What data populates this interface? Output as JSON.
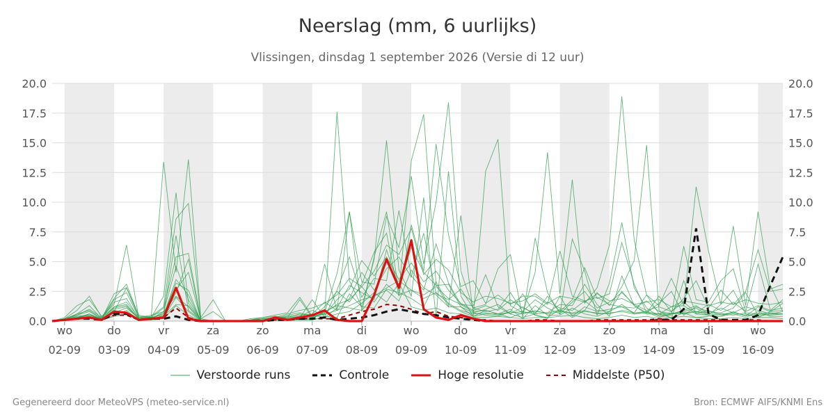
{
  "title": "Neerslag (mm, 6 uurlijks)",
  "subtitle": "Vlissingen, dinsdag  1 september 2026 (Versie di 12 uur)",
  "footer": {
    "left": "Gegenereerd door MeteoVPS (meteo-service.nl)",
    "right": "Bron: ECMWF AIFS/KNMI Ens"
  },
  "legend": [
    {
      "label": "Verstoorde runs",
      "color": "#33a853",
      "style": "thin"
    },
    {
      "label": "Controle",
      "color": "#111111",
      "style": "dashed"
    },
    {
      "label": "Hoge resolutie",
      "color": "#dd1111",
      "style": "solid"
    },
    {
      "label": "Middelste (P50)",
      "color": "#990000",
      "style": "dashed-thin"
    }
  ],
  "chart_data": {
    "type": "line",
    "title": "Neerslag (mm, 6 uurlijks)",
    "ylim": [
      0,
      20
    ],
    "yticks": [
      "0.0",
      "2.5",
      "5.0",
      "7.5",
      "10.0",
      "12.5",
      "15.0",
      "17.5",
      "20.0"
    ],
    "xlim": [
      0,
      59
    ],
    "x_ticks": [
      {
        "day": "wo",
        "date": "02-09"
      },
      {
        "day": "do",
        "date": "03-09"
      },
      {
        "day": "vr",
        "date": "04-09"
      },
      {
        "day": "za",
        "date": "05-09"
      },
      {
        "day": "zo",
        "date": "06-09"
      },
      {
        "day": "ma",
        "date": "07-09"
      },
      {
        "day": "di",
        "date": "08-09"
      },
      {
        "day": "wo",
        "date": "09-09"
      },
      {
        "day": "do",
        "date": "10-09"
      },
      {
        "day": "vr",
        "date": "11-09"
      },
      {
        "day": "za",
        "date": "12-09"
      },
      {
        "day": "zo",
        "date": "13-09"
      },
      {
        "day": "ma",
        "date": "14-09"
      },
      {
        "day": "di",
        "date": "15-09"
      },
      {
        "day": "wo",
        "date": "16-09"
      }
    ],
    "series": [
      {
        "name": "Hoge resolutie",
        "color": "#dd1111",
        "values": [
          0,
          0.1,
          0.2,
          0.3,
          0.1,
          0.8,
          0.7,
          0.1,
          0.2,
          0.3,
          2.8,
          0.2,
          0,
          0,
          0,
          0,
          0,
          0,
          0.3,
          0.1,
          0.3,
          0.5,
          0.9,
          0.1,
          0,
          0,
          2.2,
          5.2,
          2.8,
          6.8,
          1,
          0.3,
          0.1,
          0.5,
          0.2,
          0,
          0,
          0,
          0,
          0,
          0,
          0,
          0,
          0,
          0,
          0,
          0,
          0,
          0,
          0,
          0,
          0,
          0,
          0,
          0,
          0,
          0,
          0,
          0,
          0
        ]
      },
      {
        "name": "Controle",
        "color": "#111111",
        "values": [
          0,
          0.1,
          0.2,
          0.2,
          0.1,
          0.6,
          0.6,
          0.1,
          0.2,
          0.2,
          0.4,
          0.1,
          0,
          0,
          0,
          0,
          0,
          0,
          0.1,
          0.1,
          0.2,
          0.2,
          0.3,
          0.1,
          0.2,
          0.3,
          0.5,
          0.8,
          1,
          0.8,
          0.6,
          0.5,
          0.3,
          0.2,
          0.1,
          0,
          0,
          0,
          0,
          0,
          0,
          0,
          0,
          0,
          0,
          0,
          0,
          0,
          0,
          0.1,
          0.1,
          1,
          7.8,
          0.6,
          0.1,
          0.1,
          0.1,
          0.5,
          3,
          5.4
        ]
      },
      {
        "name": "Middelste (P50)",
        "color": "#990000",
        "values": [
          0,
          0.1,
          0.2,
          0.3,
          0.1,
          0.5,
          0.5,
          0.1,
          0.2,
          0.3,
          1.1,
          0.3,
          0,
          0,
          0,
          0,
          0,
          0,
          0.1,
          0.1,
          0.2,
          0.2,
          0.2,
          0.2,
          0.5,
          0.8,
          1,
          1.4,
          1.3,
          1,
          0.6,
          0.8,
          0.4,
          0.3,
          0.1,
          0.1,
          0,
          0,
          0,
          0.1,
          0.1,
          0,
          0,
          0,
          0.1,
          0.1,
          0.1,
          0.1,
          0.1,
          0.2,
          0.1,
          0.1,
          0.1,
          0.1,
          0.1,
          0,
          0.1,
          0.1,
          0,
          0
        ]
      },
      {
        "values": [
          0,
          0.2,
          0.9,
          2.1,
          0.3,
          1.9,
          3.1,
          0.4,
          0.3,
          2.1,
          10.8,
          1.5,
          0.1,
          0,
          0,
          0,
          0.1,
          0.3,
          0.4,
          0.3,
          1.8,
          0.3,
          0.6,
          17.6,
          3.4,
          1.2,
          5.2,
          15.2,
          4.3,
          2.1,
          10.4,
          0.3,
          12.6,
          2.1,
          0.4,
          12.6,
          15.3,
          1.3,
          0.7,
          4.1,
          14.2,
          2.3,
          11.9,
          1.5,
          2.8,
          6.4,
          18.9,
          6.8,
          2.2,
          1.3,
          3.6,
          1.3,
          11.3,
          5.9,
          1.4,
          8,
          1.3,
          9.2,
          2.7,
          3.1
        ]
      },
      {
        "values": [
          0,
          0.1,
          0.4,
          0.5,
          0.1,
          1.2,
          1.6,
          0.3,
          0.5,
          0.8,
          2.1,
          1.2,
          0,
          0,
          0,
          0,
          0.1,
          0.2,
          0.2,
          0.5,
          0.7,
          0.4,
          0.7,
          4,
          9.2,
          3.3,
          3.1,
          8.8,
          6.2,
          12.2,
          4.8,
          10,
          18.4,
          4.2,
          1.1,
          1.4,
          4.4,
          5.6,
          0.3,
          7,
          2.4,
          0.6,
          6.9,
          4.2,
          0.5,
          3.2,
          8.3,
          2.8,
          1.1,
          0.4,
          0.5,
          6.3,
          1.8,
          1.6,
          3.4,
          4.4,
          0.8,
          4.8,
          0.9,
          1.8
        ]
      },
      {
        "values": [
          0,
          0.3,
          1.3,
          1.8,
          0.4,
          1.4,
          6.4,
          0.2,
          0.4,
          13.4,
          4.1,
          13.6,
          0.3,
          1.8,
          0,
          0,
          0.2,
          0.3,
          0.5,
          0.7,
          2,
          0.4,
          4.8,
          0.9,
          9.2,
          0.8,
          5.4,
          9.2,
          2.5,
          13.5,
          17.4,
          3.1,
          1.2,
          8.9,
          0.7,
          0.5,
          0.4,
          0.8,
          2.3,
          0.5,
          0.3,
          1,
          0.3,
          0.9,
          2.4,
          1.3,
          2.9,
          5.1,
          14.8,
          0.9,
          0.2,
          3.4,
          0.6,
          0.5,
          1.4,
          2.6,
          0.6,
          0.3,
          0.8,
          1.5
        ]
      },
      {
        "values": [
          0,
          0.1,
          0.6,
          1.3,
          0.2,
          2.3,
          2.8,
          0.5,
          0.3,
          1.1,
          5.4,
          5.7,
          0.2,
          0,
          0,
          0,
          0.1,
          0.1,
          0.3,
          0.2,
          0.3,
          1.8,
          0.3,
          2.6,
          5.4,
          2,
          3.6,
          3.4,
          9.3,
          3.8,
          2.6,
          6.5,
          3.2,
          1.4,
          1.3,
          3.9,
          1.2,
          0.6,
          0.3,
          0.6,
          2.1,
          0.8,
          1.8,
          4.5,
          1.9,
          2.3,
          6.6,
          3.1,
          0.7,
          2.1,
          0.8,
          1.9,
          3.4,
          1.1,
          2.6,
          1.4,
          2.5,
          6,
          2.5,
          2.7
        ]
      },
      {
        "values": [
          0,
          0.1,
          0.2,
          0.6,
          0.1,
          0.7,
          1.1,
          0.2,
          0.1,
          0.4,
          1.4,
          1.3,
          0.1,
          0,
          0,
          0,
          0,
          0.1,
          0.1,
          0.2,
          0.4,
          0.2,
          0.8,
          1.3,
          1.1,
          0.9,
          2.1,
          2.6,
          1.7,
          4.3,
          2.8,
          2.2,
          1.2,
          1.2,
          0.4,
          0.6,
          0.6,
          1,
          0.2,
          1.3,
          0.5,
          0.5,
          1.1,
          0.6,
          0.4,
          0.8,
          1.4,
          0.6,
          0.8,
          0.3,
          0.6,
          0.8,
          1.1,
          0.5,
          0.4,
          0.8,
          0.4,
          1.2,
          0.8,
          0.9
        ]
      },
      {
        "values": [
          0,
          0.2,
          0.5,
          1,
          0.3,
          1.2,
          1.4,
          0.2,
          0.3,
          0.6,
          7.2,
          0.9,
          0.1,
          0,
          0,
          0,
          0,
          0.2,
          0.1,
          0.3,
          0.6,
          0.3,
          1.2,
          2.5,
          1.6,
          3.1,
          5.8,
          7.4,
          2.1,
          8.1,
          4.2,
          14.9,
          7.3,
          2.9,
          3.4,
          1.5,
          2.2,
          1.4,
          2.1,
          2.1,
          1.4,
          5.9,
          2.1,
          1.7,
          0.9,
          0.8,
          2.5,
          1.3,
          0.7,
          1.5,
          2.5,
          0.5,
          1.2,
          0.8,
          0.7,
          1.1,
          2.4,
          0.5,
          3,
          0.8
        ]
      },
      {
        "values": [
          0,
          0.1,
          0.3,
          0.4,
          0.1,
          0.5,
          0.9,
          0.1,
          0.1,
          0.5,
          3.5,
          2.2,
          0,
          0,
          0,
          0,
          0,
          0.1,
          0.1,
          0.1,
          0.3,
          0.1,
          0.4,
          0.3,
          2.3,
          1.2,
          1.1,
          2.7,
          2.4,
          1.9,
          1.2,
          3.3,
          1.4,
          0.8,
          0.4,
          0.9,
          0.6,
          0.3,
          0.7,
          0.8,
          0.7,
          1.4,
          1.3,
          3.1,
          1.4,
          0.4,
          3.8,
          1.3,
          0.6,
          0.6,
          1.2,
          1.3,
          0.6,
          0.9,
          0.5,
          0.7,
          0.5,
          0.4,
          0.6,
          0.6
        ]
      },
      {
        "values": [
          0,
          0.1,
          0.4,
          0.5,
          0.2,
          0.8,
          2.8,
          0.3,
          0.2,
          0.7,
          2.6,
          4.1,
          0.1,
          0,
          0,
          0,
          0,
          0.1,
          0.2,
          0.2,
          0.2,
          0.5,
          0.3,
          1.1,
          3,
          2.4,
          1.8,
          6,
          2.9,
          6.2,
          4.1,
          3,
          3.1,
          1.2,
          0.7,
          1,
          1.4,
          0.6,
          1.2,
          0.5,
          0.2,
          2.1,
          0.4,
          1.2,
          0.8,
          1,
          1.2,
          0.7,
          2.2,
          0.6,
          0.3,
          0.7,
          0.3,
          0.4,
          0.4,
          0.6,
          0.3,
          0.8,
          0.4,
          0.4
        ]
      },
      {
        "values": [
          0,
          0.1,
          0.2,
          0.3,
          0.1,
          0.4,
          0.6,
          0.1,
          0.1,
          0.2,
          1.3,
          0.5,
          0,
          0,
          0,
          0,
          0,
          0,
          0.1,
          0.1,
          0.1,
          0.1,
          0.3,
          0.6,
          0.8,
          1.5,
          2.4,
          1.6,
          3.2,
          1.2,
          0.9,
          1.1,
          0.7,
          0.6,
          0.3,
          0.3,
          0.4,
          0.3,
          0.2,
          0.3,
          0.3,
          0.4,
          0.5,
          0.3,
          0.2,
          0.3,
          0.5,
          0.3,
          0.4,
          0.2,
          0.3,
          0.4,
          0.3,
          0.2,
          0.2,
          0.3,
          0.2,
          0.3,
          0.3,
          0.2
        ]
      },
      {
        "values": [
          0,
          0.1,
          0.5,
          0.8,
          0.2,
          1.6,
          1.9,
          0.2,
          0.2,
          0.8,
          4.6,
          1.8,
          0.1,
          0,
          0,
          0,
          0,
          0.2,
          0.2,
          0.4,
          0.5,
          0.6,
          1.6,
          0.9,
          1.9,
          4.1,
          2.6,
          4.4,
          5.4,
          3.7,
          7.4,
          2.3,
          1.8,
          2.7,
          1.1,
          0.8,
          1,
          2.4,
          0.8,
          1.8,
          1.1,
          0.6,
          1.6,
          2.5,
          1.1,
          1.6,
          2.4,
          1.4,
          0.9,
          1.2,
          0.8,
          1.6,
          0.7,
          1.4,
          0.9,
          1.6,
          0.8,
          1.3,
          0.9,
          1.1
        ]
      },
      {
        "values": [
          0,
          0.1,
          0.3,
          0.6,
          0.2,
          1.1,
          1.3,
          0.2,
          0.3,
          0.5,
          3.2,
          2.6,
          0,
          0,
          0,
          0,
          0,
          0.1,
          0.2,
          0.3,
          0.4,
          0.9,
          0.5,
          1.8,
          2.7,
          5.1,
          3.8,
          5.4,
          3.5,
          4.9,
          3.3,
          4.2,
          2.6,
          1.5,
          0.9,
          1.3,
          0.9,
          1.8,
          1.1,
          0.7,
          1.6,
          1.1,
          0.9,
          1.7,
          2,
          1.4,
          1.2,
          1.1,
          1.7,
          0.8,
          0.6,
          0.9,
          1.3,
          0.6,
          1.1,
          0.7,
          1.2,
          0.9,
          0.6,
          0.8
        ]
      },
      {
        "values": [
          0,
          0.1,
          0.2,
          0.4,
          0.1,
          0.9,
          0.7,
          0.1,
          0.1,
          0.3,
          2,
          0.8,
          0,
          0,
          0,
          0,
          0,
          0.1,
          0.1,
          0.2,
          0.2,
          0.3,
          0.7,
          1.4,
          1.8,
          2.9,
          1.6,
          3.1,
          2.2,
          2.6,
          1.9,
          2.4,
          1.5,
          0.9,
          0.6,
          0.7,
          0.5,
          0.8,
          0.6,
          0.9,
          0.6,
          0.8,
          0.7,
          0.9,
          0.6,
          0.7,
          0.8,
          0.6,
          0.7,
          0.5,
          0.6,
          0.7,
          0.8,
          0.5,
          0.6,
          0.5,
          0.7,
          0.6,
          0.5,
          0.6
        ]
      },
      {
        "values": [
          0,
          0.2,
          0.6,
          0.9,
          0.2,
          1.8,
          2.4,
          0.3,
          0.4,
          1.2,
          8.6,
          9.9,
          0.2,
          0.8,
          0,
          0,
          0.1,
          0.2,
          0.3,
          0.6,
          0.9,
          1.1,
          1.5,
          2.2,
          3.6,
          2.9,
          4.2,
          6.4,
          5.6,
          7.8,
          3.9,
          5.2,
          4.3,
          2.4,
          1.6,
          2.1,
          1.9,
          1.5,
          1.7,
          2.3,
          1.5,
          2.1,
          1.9,
          1.6,
          2.3,
          1.7,
          1.9,
          1.4,
          1.6,
          1.8,
          1.2,
          1.7,
          1.5,
          1.3,
          1.6,
          1.4,
          1.8,
          1.5,
          1.4,
          1.6
        ]
      },
      {
        "values": [
          0,
          0.1,
          0.3,
          0.5,
          0.1,
          1,
          1.2,
          0.2,
          0.2,
          0.4,
          2.4,
          5.2,
          0.1,
          0,
          0,
          0,
          0,
          0.1,
          0.1,
          0.2,
          0.3,
          0.4,
          0.6,
          0.9,
          1.3,
          1.8,
          2.1,
          2.8,
          3.4,
          2.6,
          2.2,
          2.9,
          1.9,
          1.4,
          0.8,
          0.9,
          0.6,
          0.7,
          0.8,
          0.6,
          0.7,
          0.9,
          0.6,
          0.8,
          0.7,
          0.6,
          0.9,
          0.7,
          0.8,
          0.6,
          0.7,
          0.6,
          0.8,
          0.7,
          0.6,
          0.7,
          0.5,
          0.6,
          0.7,
          0.6
        ]
      }
    ]
  }
}
